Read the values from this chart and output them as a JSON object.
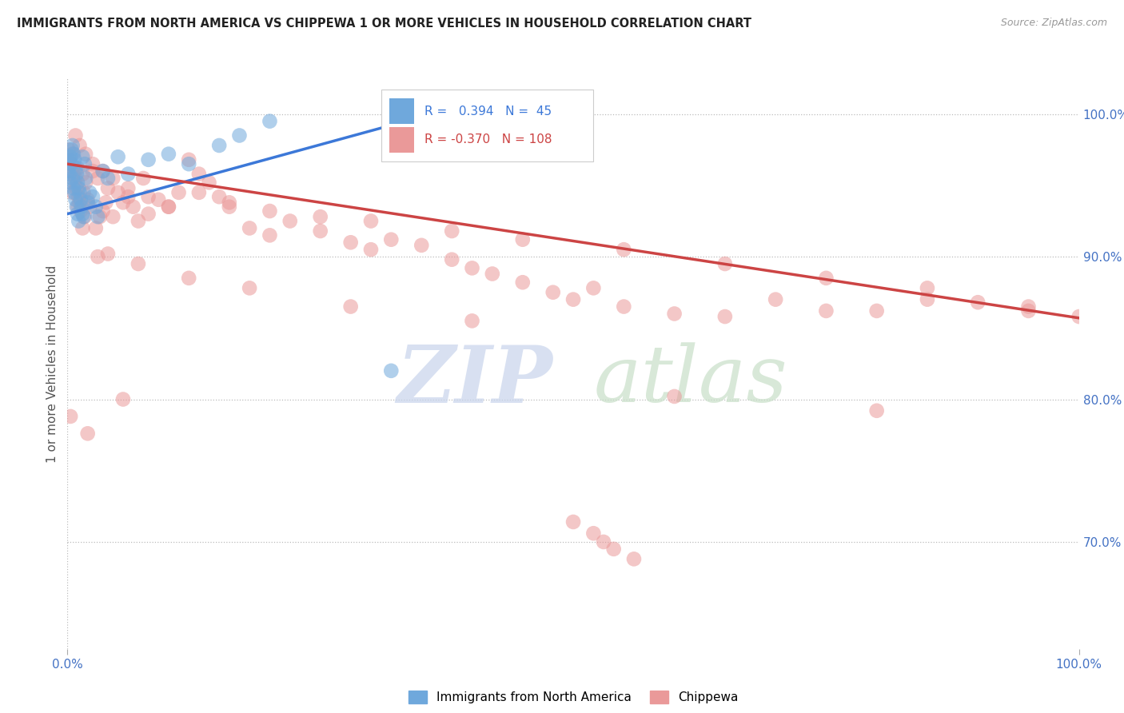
{
  "title": "IMMIGRANTS FROM NORTH AMERICA VS CHIPPEWA 1 OR MORE VEHICLES IN HOUSEHOLD CORRELATION CHART",
  "source": "Source: ZipAtlas.com",
  "ylabel": "1 or more Vehicles in Household",
  "legend_blue_label": "Immigrants from North America",
  "legend_pink_label": "Chippewa",
  "r_blue": 0.394,
  "n_blue": 45,
  "r_pink": -0.37,
  "n_pink": 108,
  "background_color": "#ffffff",
  "dot_color_blue": "#6fa8dc",
  "dot_color_pink": "#ea9999",
  "line_color_blue": "#3c78d8",
  "line_color_pink": "#cc4444",
  "watermark_zip": "ZIP",
  "watermark_atlas": "atlas",
  "watermark_color_zip": "#c8d8f0",
  "watermark_color_atlas": "#c8e0c8",
  "ylim_low": 0.625,
  "ylim_high": 1.025,
  "xlim_low": 0.0,
  "xlim_high": 1.0,
  "ytick_values": [
    0.7,
    0.8,
    0.9,
    1.0
  ],
  "blue_line_x0": 0.0,
  "blue_line_y0": 0.93,
  "blue_line_x1": 0.35,
  "blue_line_y1": 0.998,
  "pink_line_x0": 0.0,
  "pink_line_y0": 0.965,
  "pink_line_x1": 1.0,
  "pink_line_y1": 0.857,
  "blue_dots_x": [
    0.001,
    0.002,
    0.002,
    0.003,
    0.003,
    0.004,
    0.004,
    0.005,
    0.005,
    0.006,
    0.006,
    0.007,
    0.007,
    0.008,
    0.008,
    0.009,
    0.009,
    0.01,
    0.01,
    0.011,
    0.011,
    0.012,
    0.013,
    0.014,
    0.015,
    0.015,
    0.016,
    0.017,
    0.018,
    0.02,
    0.022,
    0.025,
    0.028,
    0.03,
    0.035,
    0.04,
    0.05,
    0.06,
    0.08,
    0.1,
    0.12,
    0.15,
    0.17,
    0.2,
    0.32
  ],
  "blue_dots_y": [
    0.96,
    0.968,
    0.958,
    0.97,
    0.952,
    0.975,
    0.965,
    0.978,
    0.955,
    0.972,
    0.948,
    0.968,
    0.945,
    0.962,
    0.94,
    0.958,
    0.935,
    0.952,
    0.93,
    0.948,
    0.925,
    0.945,
    0.94,
    0.935,
    0.93,
    0.97,
    0.928,
    0.965,
    0.955,
    0.938,
    0.945,
    0.942,
    0.935,
    0.928,
    0.96,
    0.955,
    0.97,
    0.958,
    0.968,
    0.972,
    0.965,
    0.978,
    0.985,
    0.995,
    0.82
  ],
  "pink_dots_x": [
    0.001,
    0.002,
    0.003,
    0.004,
    0.005,
    0.005,
    0.006,
    0.007,
    0.008,
    0.009,
    0.01,
    0.01,
    0.011,
    0.012,
    0.013,
    0.015,
    0.016,
    0.017,
    0.018,
    0.02,
    0.022,
    0.025,
    0.028,
    0.03,
    0.032,
    0.035,
    0.038,
    0.04,
    0.045,
    0.05,
    0.055,
    0.06,
    0.065,
    0.07,
    0.075,
    0.08,
    0.09,
    0.1,
    0.11,
    0.12,
    0.13,
    0.14,
    0.15,
    0.16,
    0.18,
    0.2,
    0.22,
    0.25,
    0.28,
    0.3,
    0.32,
    0.35,
    0.38,
    0.4,
    0.42,
    0.45,
    0.48,
    0.5,
    0.52,
    0.55,
    0.6,
    0.65,
    0.7,
    0.75,
    0.8,
    0.85,
    0.9,
    0.95,
    1.0,
    0.008,
    0.012,
    0.018,
    0.025,
    0.035,
    0.045,
    0.06,
    0.08,
    0.1,
    0.13,
    0.16,
    0.2,
    0.25,
    0.3,
    0.38,
    0.45,
    0.55,
    0.65,
    0.75,
    0.85,
    0.95,
    0.04,
    0.07,
    0.12,
    0.18,
    0.28,
    0.4,
    0.6,
    0.8,
    0.003,
    0.02,
    0.015,
    0.03,
    0.055,
    0.5,
    0.52,
    0.53,
    0.54,
    0.56
  ],
  "pink_dots_y": [
    0.975,
    0.968,
    0.965,
    0.96,
    0.972,
    0.945,
    0.958,
    0.952,
    0.955,
    0.948,
    0.962,
    0.935,
    0.942,
    0.938,
    0.932,
    0.958,
    0.945,
    0.928,
    0.952,
    0.94,
    0.935,
    0.96,
    0.92,
    0.955,
    0.928,
    0.932,
    0.938,
    0.948,
    0.928,
    0.945,
    0.938,
    0.942,
    0.935,
    0.925,
    0.955,
    0.93,
    0.94,
    0.935,
    0.945,
    0.968,
    0.958,
    0.952,
    0.942,
    0.935,
    0.92,
    0.915,
    0.925,
    0.918,
    0.91,
    0.905,
    0.912,
    0.908,
    0.898,
    0.892,
    0.888,
    0.882,
    0.875,
    0.87,
    0.878,
    0.865,
    0.86,
    0.858,
    0.87,
    0.862,
    0.862,
    0.87,
    0.868,
    0.865,
    0.858,
    0.985,
    0.978,
    0.972,
    0.965,
    0.96,
    0.955,
    0.948,
    0.942,
    0.935,
    0.945,
    0.938,
    0.932,
    0.928,
    0.925,
    0.918,
    0.912,
    0.905,
    0.895,
    0.885,
    0.878,
    0.862,
    0.902,
    0.895,
    0.885,
    0.878,
    0.865,
    0.855,
    0.802,
    0.792,
    0.788,
    0.776,
    0.92,
    0.9,
    0.8,
    0.714,
    0.706,
    0.7,
    0.695,
    0.688
  ]
}
